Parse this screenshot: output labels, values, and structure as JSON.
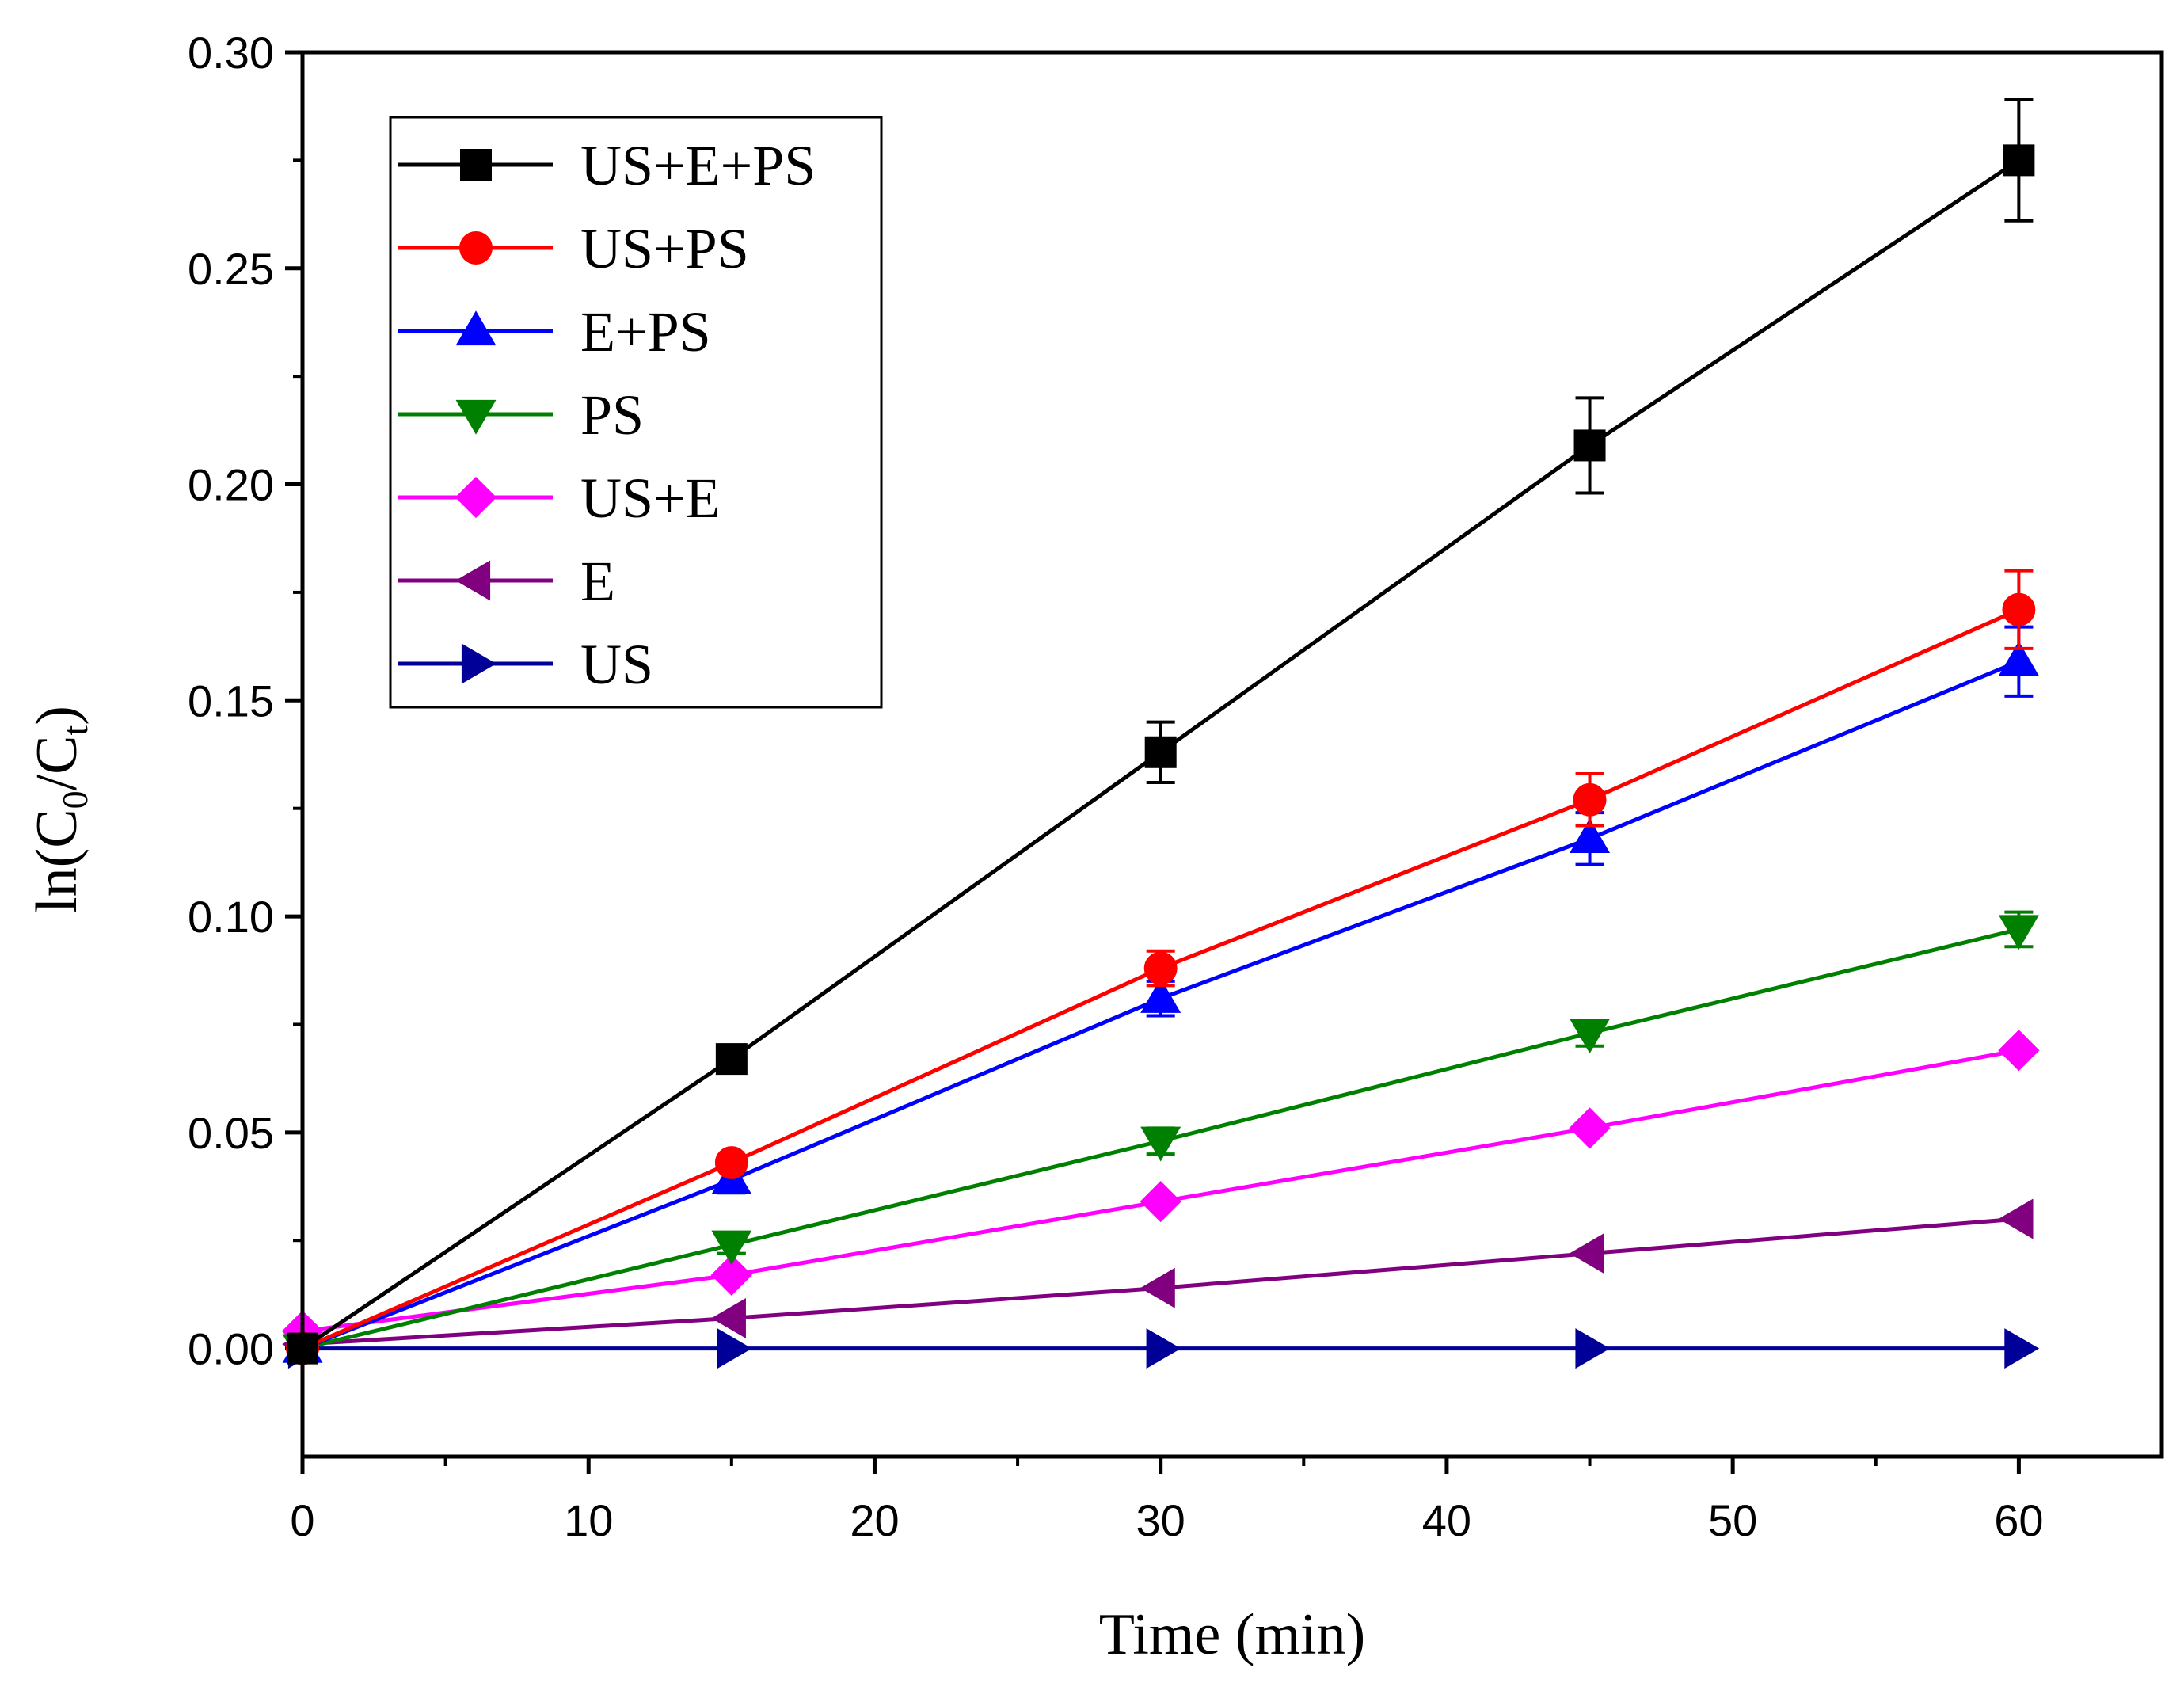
{
  "chart_data": {
    "type": "line",
    "title": "",
    "xlabel": "Time (min)",
    "ylabel": {
      "prefix": "ln(C",
      "sub0": "0",
      "mid": "/C",
      "sub1": "t",
      "suffix": ")"
    },
    "xlim": [
      0,
      65
    ],
    "ylim": [
      -0.025,
      0.3
    ],
    "x_ticks": [
      0,
      10,
      20,
      30,
      40,
      50,
      60
    ],
    "x_tick_labels": [
      "0",
      "10",
      "20",
      "30",
      "40",
      "50",
      "60"
    ],
    "y_ticks": [
      0.0,
      0.05,
      0.1,
      0.15,
      0.2,
      0.25,
      0.3
    ],
    "y_tick_labels": [
      "0.00",
      "0.05",
      "0.10",
      "0.15",
      "0.20",
      "0.25",
      "0.30"
    ],
    "grid": false,
    "legend_position": "top-left",
    "x": [
      0,
      15,
      30,
      45,
      60
    ],
    "series": [
      {
        "name": "US+E+PS",
        "color": "#000000",
        "marker": "square",
        "values": [
          0.0,
          0.067,
          0.138,
          0.209,
          0.275
        ],
        "errors": [
          0.0,
          0.0,
          0.007,
          0.011,
          0.014
        ]
      },
      {
        "name": "US+PS",
        "color": "#ff0000",
        "marker": "circle",
        "values": [
          0.0,
          0.043,
          0.088,
          0.127,
          0.171
        ],
        "errors": [
          0.0,
          0.0,
          0.004,
          0.006,
          0.009
        ]
      },
      {
        "name": "E+PS",
        "color": "#0000ff",
        "marker": "triangle-up",
        "values": [
          0.0,
          0.039,
          0.081,
          0.118,
          0.159
        ],
        "errors": [
          0.0,
          0.003,
          0.004,
          0.006,
          0.008
        ]
      },
      {
        "name": "PS",
        "color": "#008000",
        "marker": "triangle-down",
        "values": [
          0.0,
          0.024,
          0.048,
          0.073,
          0.097
        ],
        "errors": [
          0.0,
          0.002,
          0.003,
          0.003,
          0.004
        ]
      },
      {
        "name": "US+E",
        "color": "#ff00ff",
        "marker": "diamond",
        "values": [
          0.004,
          0.017,
          0.034,
          0.051,
          0.069
        ],
        "errors": [
          0.0,
          0.0,
          0.0,
          0.0,
          0.0
        ]
      },
      {
        "name": "E",
        "color": "#800080",
        "marker": "triangle-left",
        "values": [
          0.001,
          0.007,
          0.014,
          0.022,
          0.03
        ],
        "errors": [
          0.0,
          0.0,
          0.0,
          0.0,
          0.0
        ]
      },
      {
        "name": "US",
        "color": "#000099",
        "marker": "triangle-right",
        "values": [
          0.0,
          0.0,
          0.0,
          0.0,
          0.0
        ],
        "errors": [
          0.0,
          0.0,
          0.0,
          0.0,
          0.0
        ]
      }
    ]
  }
}
